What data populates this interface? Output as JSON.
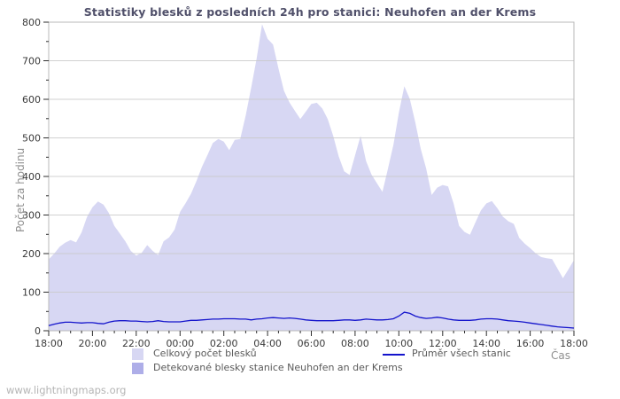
{
  "page": {
    "watermark": "www.lightningmaps.org"
  },
  "chart_data": {
    "type": "area",
    "title": "Statistiky blesků z posledních 24h pro stanici: Neuhofen an der Krems",
    "xlabel": "Čas",
    "ylabel": "Počet za hodinu",
    "ylim": [
      0,
      800
    ],
    "y_major_step": 100,
    "y_minor_step": 50,
    "grid": "horizontal-major",
    "legend_position": "bottom",
    "x_start": "18:00",
    "x_end": "18:00",
    "x_minutes_total": 1440,
    "x_sample_step_minutes": 15,
    "x_tick_minor_step_minutes": 30,
    "x_tick_labels": [
      "18:00",
      "20:00",
      "22:00",
      "00:00",
      "02:00",
      "04:00",
      "06:00",
      "08:00",
      "10:00",
      "12:00",
      "14:00",
      "16:00",
      "18:00"
    ],
    "series": [
      {
        "id": "total",
        "name": "Celkový počet blesků",
        "type": "area",
        "color": "#d7d7f3",
        "values": [
          185,
          200,
          218,
          228,
          235,
          229,
          255,
          295,
          320,
          335,
          327,
          305,
          272,
          252,
          232,
          207,
          195,
          202,
          222,
          207,
          196,
          232,
          242,
          262,
          308,
          330,
          355,
          388,
          425,
          455,
          487,
          497,
          490,
          468,
          495,
          497,
          558,
          630,
          705,
          795,
          757,
          742,
          680,
          622,
          592,
          570,
          549,
          568,
          588,
          591,
          576,
          549,
          505,
          452,
          413,
          404,
          455,
          505,
          440,
          405,
          382,
          360,
          420,
          482,
          565,
          634,
          601,
          540,
          472,
          420,
          352,
          371,
          378,
          374,
          330,
          272,
          256,
          249,
          281,
          312,
          330,
          336,
          318,
          296,
          284,
          277,
          241,
          226,
          214,
          201,
          191,
          188,
          186,
          161,
          136,
          159,
          183
        ]
      },
      {
        "id": "station",
        "name": "Detekované blesky stanice Neuhofen an der Krems",
        "type": "area",
        "color": "#aeaee8",
        "values": [],
        "values_note": "series not visible in plot (≈0 across the whole 24h range)"
      },
      {
        "id": "average",
        "name": "Průměr všech stanic",
        "type": "line",
        "color": "#1414cc",
        "values": [
          13,
          17,
          20,
          22,
          22,
          21,
          20,
          21,
          21,
          19,
          18,
          22,
          25,
          26,
          26,
          25,
          25,
          24,
          23,
          24,
          26,
          24,
          23,
          23,
          23,
          25,
          27,
          27,
          28,
          29,
          30,
          30,
          31,
          31,
          31,
          30,
          30,
          28,
          30,
          31,
          33,
          34,
          33,
          32,
          33,
          32,
          30,
          28,
          27,
          26,
          26,
          26,
          26,
          27,
          28,
          28,
          27,
          28,
          30,
          29,
          28,
          28,
          29,
          31,
          38,
          48,
          45,
          38,
          34,
          32,
          33,
          35,
          33,
          30,
          28,
          27,
          27,
          27,
          28,
          30,
          31,
          31,
          30,
          28,
          26,
          25,
          24,
          22,
          20,
          18,
          16,
          14,
          12,
          10,
          9,
          8,
          7
        ]
      }
    ],
    "style": {
      "grid_color": "#c9c9c9",
      "border_color": "#b8b8b8",
      "tick_color": "#2e2e2e",
      "tick_label_color": "#3a3a3a",
      "title_color": "#50506a",
      "axis_label_color": "#8f8f8f",
      "legend_text_color": "#5a5a5a",
      "background": "#ffffff"
    }
  }
}
